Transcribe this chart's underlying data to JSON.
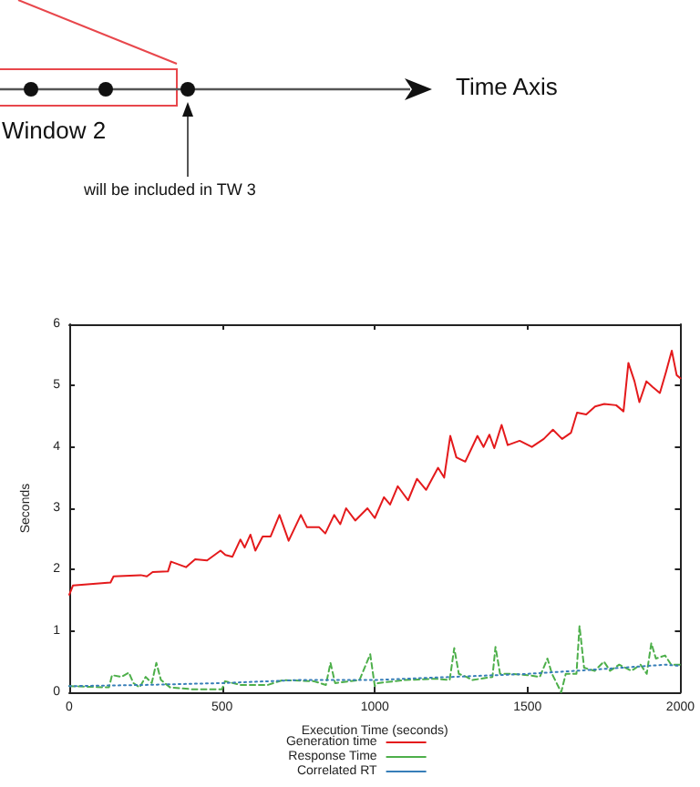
{
  "chart_data": {
    "type": "line",
    "xlabel": "Execution Time (seconds)",
    "ylabel": "Seconds",
    "annotations": [
      "Time Axis",
      "Window 2",
      "will be included in TW 3"
    ],
    "xlim": [
      0,
      2000
    ],
    "xticks": [
      0,
      500,
      1000,
      1500,
      2000
    ],
    "ylim": [
      0,
      6
    ],
    "yticks": [
      0,
      1,
      2,
      3,
      4,
      5,
      6
    ],
    "grid": false,
    "legend": "bottom",
    "marker": "none",
    "series": [
      {
        "name": "Generation time",
        "color": "#e41a1c",
        "line_style": "solid",
        "x": [
          0,
          12,
          135,
          145,
          234,
          254,
          273,
          323,
          333,
          382,
          412,
          451,
          495,
          511,
          534,
          560,
          574,
          593,
          609,
          633,
          659,
          688,
          718,
          758,
          778,
          818,
          838,
          867,
          887,
          906,
          936,
          976,
          1000,
          1030,
          1050,
          1075,
          1109,
          1138,
          1168,
          1207,
          1227,
          1247,
          1267,
          1296,
          1336,
          1356,
          1375,
          1391,
          1415,
          1435,
          1474,
          1514,
          1553,
          1583,
          1613,
          1642,
          1662,
          1692,
          1721,
          1751,
          1790,
          1814,
          1830,
          1850,
          1866,
          1889,
          1909,
          1933,
          1953,
          1972,
          1988,
          2000
        ],
        "values": [
          1.59,
          1.74,
          1.79,
          1.89,
          1.91,
          1.89,
          1.96,
          1.97,
          2.13,
          2.04,
          2.17,
          2.15,
          2.31,
          2.24,
          2.21,
          2.49,
          2.36,
          2.57,
          2.31,
          2.54,
          2.54,
          2.89,
          2.47,
          2.89,
          2.69,
          2.69,
          2.59,
          2.89,
          2.74,
          3.0,
          2.8,
          3.0,
          2.84,
          3.18,
          3.06,
          3.36,
          3.13,
          3.48,
          3.3,
          3.66,
          3.5,
          4.18,
          3.83,
          3.76,
          4.18,
          4.0,
          4.2,
          3.98,
          4.36,
          4.03,
          4.1,
          4.0,
          4.13,
          4.28,
          4.13,
          4.23,
          4.56,
          4.53,
          4.66,
          4.7,
          4.68,
          4.58,
          5.37,
          5.07,
          4.73,
          5.07,
          4.98,
          4.88,
          5.22,
          5.57,
          5.17,
          5.12
        ]
      },
      {
        "name": "Response Time",
        "color": "#4daf4a",
        "line_style": "dashed",
        "x": [
          0,
          130,
          140,
          170,
          195,
          210,
          230,
          250,
          270,
          285,
          300,
          330,
          400,
          500,
          510,
          560,
          650,
          700,
          800,
          840,
          855,
          870,
          950,
          985,
          1000,
          1010,
          1100,
          1200,
          1245,
          1260,
          1275,
          1300,
          1320,
          1385,
          1395,
          1410,
          1450,
          1500,
          1540,
          1565,
          1580,
          1600,
          1610,
          1625,
          1660,
          1670,
          1685,
          1720,
          1750,
          1770,
          1800,
          1840,
          1870,
          1890,
          1905,
          1920,
          1950,
          1970,
          2000
        ],
        "values": [
          0.1,
          0.08,
          0.28,
          0.25,
          0.32,
          0.15,
          0.08,
          0.25,
          0.15,
          0.48,
          0.2,
          0.08,
          0.05,
          0.05,
          0.18,
          0.12,
          0.12,
          0.2,
          0.18,
          0.12,
          0.48,
          0.15,
          0.2,
          0.62,
          0.1,
          0.15,
          0.2,
          0.22,
          0.2,
          0.72,
          0.3,
          0.25,
          0.2,
          0.25,
          0.74,
          0.3,
          0.3,
          0.28,
          0.25,
          0.55,
          0.3,
          0.1,
          0.0,
          0.3,
          0.3,
          1.08,
          0.4,
          0.35,
          0.5,
          0.35,
          0.45,
          0.35,
          0.45,
          0.3,
          0.8,
          0.55,
          0.6,
          0.45,
          0.45
        ]
      },
      {
        "name": "Correlated RT",
        "color": "#377eb8",
        "line_style": "dotted",
        "x": [
          0,
          250,
          500,
          750,
          1000,
          1250,
          1500,
          1750,
          1950,
          2000
        ],
        "values": [
          0.1,
          0.12,
          0.15,
          0.2,
          0.2,
          0.25,
          0.3,
          0.38,
          0.45,
          0.43
        ]
      }
    ]
  }
}
